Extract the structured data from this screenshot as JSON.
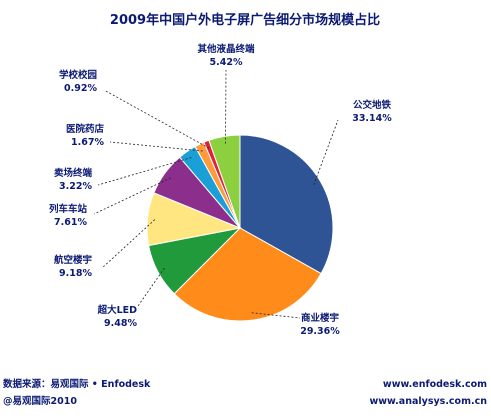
{
  "chart_data": {
    "type": "pie",
    "title": "2009年中国户外电子屏广告细分市场规模占比",
    "unit": "%",
    "slices": [
      {
        "name": "公交地铁",
        "value": 33.14,
        "color": "#2f5496"
      },
      {
        "name": "商业楼宇",
        "value": 29.36,
        "color": "#ff8c1a"
      },
      {
        "name": "超大LED",
        "value": 9.48,
        "color": "#219a3c"
      },
      {
        "name": "航空楼宇",
        "value": 9.18,
        "color": "#ffe680"
      },
      {
        "name": "列车车站",
        "value": 7.61,
        "color": "#8c2f8c"
      },
      {
        "name": "卖场终端",
        "value": 3.22,
        "color": "#1a9fd6"
      },
      {
        "name": "医院药店",
        "value": 1.67,
        "color": "#ff9b3d"
      },
      {
        "name": "学校校园",
        "value": 0.92,
        "color": "#e0203a"
      },
      {
        "name": "其他液晶终端",
        "value": 5.42,
        "color": "#8ccf3f"
      }
    ],
    "value_labels": [
      "33.14%",
      "29.36%",
      "9.48%",
      "9.18%",
      "7.61%",
      "3.22%",
      "1.67%",
      "0.92%",
      "5.42%"
    ],
    "legend": "none",
    "label_color": "#0b1a73"
  },
  "footer": {
    "source_line": "数据来源：易观国际 • Enfodesk",
    "copyright_line": "@易观国际2010",
    "url_1": "www.enfodesk.com",
    "url_2": "www.analysys.com.cn"
  }
}
